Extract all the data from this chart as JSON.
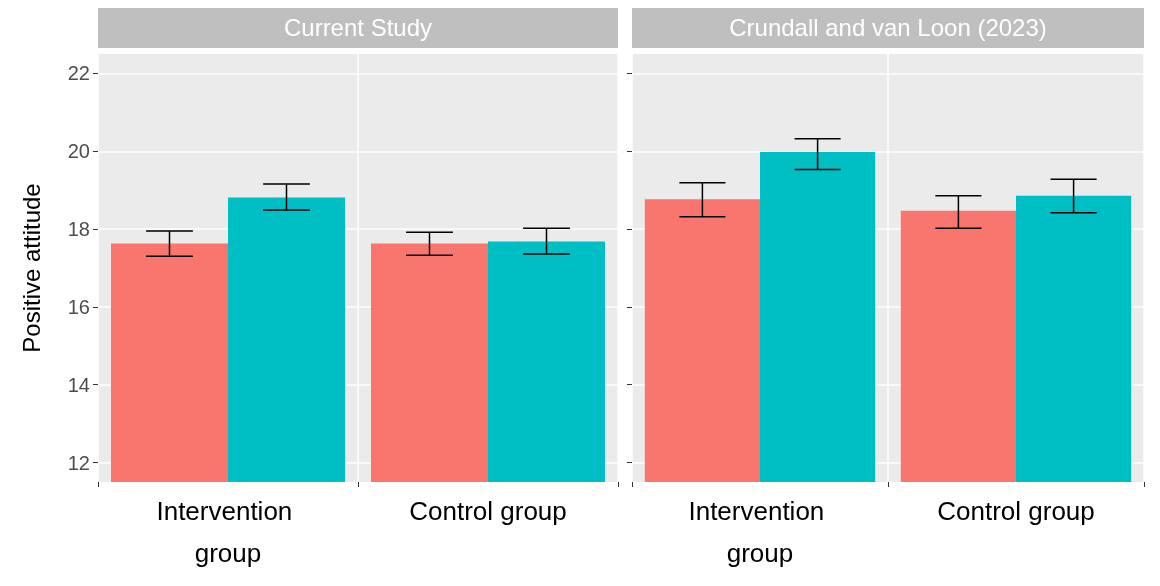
{
  "chart_data": [
    {
      "type": "bar",
      "title": "Current Study",
      "ylabel": "Positive attitude",
      "categories": [
        "Intervention group",
        "Control group"
      ],
      "series": [
        {
          "color": "#f8766d",
          "values": [
            17.63,
            17.63
          ],
          "errors": [
            [
              17.3,
              17.95
            ],
            [
              17.33,
              17.92
            ]
          ]
        },
        {
          "color": "#00bfc4",
          "values": [
            18.81,
            17.68
          ],
          "errors": [
            [
              18.49,
              19.16
            ],
            [
              17.36,
              18.02
            ]
          ]
        }
      ],
      "ylim": [
        11.5,
        22.5
      ],
      "yticks": [
        12,
        14,
        16,
        18,
        20,
        22
      ],
      "grid": true
    },
    {
      "type": "bar",
      "title": "Crundall and van Loon (2023)",
      "categories": [
        "Intervention group",
        "Control group"
      ],
      "series": [
        {
          "color": "#f8766d",
          "values": [
            18.77,
            18.47
          ],
          "errors": [
            [
              18.32,
              19.19
            ],
            [
              18.02,
              18.86
            ]
          ]
        },
        {
          "color": "#00bfc4",
          "values": [
            19.98,
            18.86
          ],
          "errors": [
            [
              19.53,
              20.32
            ],
            [
              18.42,
              19.28
            ]
          ]
        }
      ],
      "ylim": [
        11.5,
        22.5
      ],
      "yticks": [
        12,
        14,
        16,
        18,
        20,
        22
      ],
      "grid": true,
      "tick_labels": "x"
    }
  ]
}
